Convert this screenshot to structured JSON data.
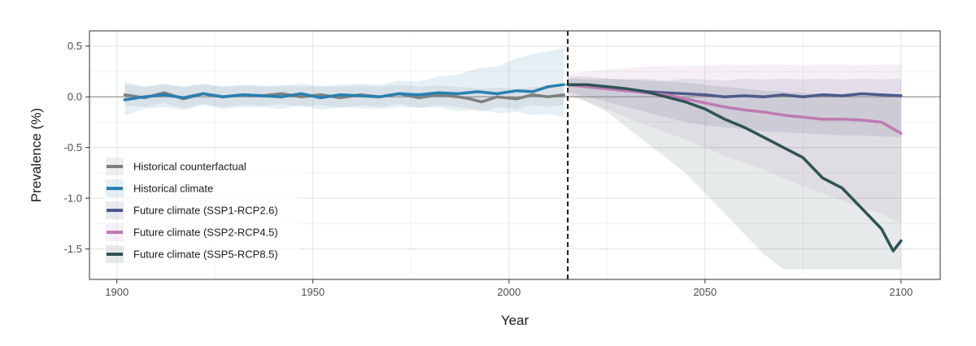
{
  "chart_data": {
    "type": "line",
    "title": "",
    "xlabel": "Year",
    "ylabel": "Prevalence (%)",
    "xlim": [
      1893,
      2110
    ],
    "ylim": [
      -1.8,
      0.65
    ],
    "xticks": [
      1900,
      1950,
      2000,
      2050,
      2100
    ],
    "yticks": [
      0.5,
      0.0,
      -0.5,
      -1.0,
      -1.5
    ],
    "xtick_labels": [
      "1900",
      "1950",
      "2000",
      "2050",
      "2100"
    ],
    "ytick_labels": [
      "0.5",
      "0.0",
      "-0.5",
      "-1.0",
      "-1.5"
    ],
    "reference_hline": 0.0,
    "divider_vline": 2015,
    "grid": true,
    "legend_position": "bottom-left",
    "series": [
      {
        "name": "Historical counterfactual",
        "color": "#7f7f7f",
        "x": [
          1902,
          1907,
          1912,
          1917,
          1922,
          1927,
          1932,
          1937,
          1942,
          1947,
          1952,
          1957,
          1962,
          1967,
          1972,
          1977,
          1982,
          1987,
          1990,
          1993,
          1997,
          2002,
          2006,
          2010,
          2014
        ],
        "y": [
          0.02,
          -0.01,
          0.04,
          -0.02,
          0.03,
          0.0,
          0.02,
          0.01,
          0.03,
          0.0,
          0.02,
          -0.01,
          0.02,
          0.0,
          0.03,
          -0.01,
          0.02,
          0.0,
          -0.02,
          -0.05,
          0.0,
          -0.02,
          0.02,
          0.0,
          0.02
        ],
        "band_upper": [
          0.12,
          0.1,
          0.13,
          0.1,
          0.12,
          0.1,
          0.11,
          0.1,
          0.12,
          0.1,
          0.11,
          0.1,
          0.11,
          0.1,
          0.12,
          0.1,
          0.11,
          0.1,
          0.09,
          0.08,
          0.09,
          0.08,
          0.1,
          0.09,
          0.1
        ],
        "band_lower": [
          -0.08,
          -0.1,
          -0.06,
          -0.12,
          -0.07,
          -0.1,
          -0.08,
          -0.09,
          -0.07,
          -0.1,
          -0.08,
          -0.11,
          -0.08,
          -0.1,
          -0.07,
          -0.11,
          -0.08,
          -0.1,
          -0.12,
          -0.15,
          -0.1,
          -0.12,
          -0.08,
          -0.1,
          -0.08
        ]
      },
      {
        "name": "Historical climate",
        "color": "#2a7fb0",
        "x": [
          1902,
          1907,
          1912,
          1917,
          1922,
          1927,
          1932,
          1937,
          1942,
          1947,
          1952,
          1957,
          1962,
          1967,
          1972,
          1977,
          1982,
          1987,
          1992,
          1997,
          2002,
          2006,
          2010,
          2014
        ],
        "y": [
          -0.03,
          0.0,
          0.02,
          -0.01,
          0.03,
          0.0,
          0.02,
          0.01,
          0.0,
          0.03,
          -0.01,
          0.02,
          0.01,
          0.0,
          0.03,
          0.02,
          0.04,
          0.03,
          0.05,
          0.03,
          0.06,
          0.05,
          0.1,
          0.12
        ],
        "band_upper": [
          0.15,
          0.1,
          0.12,
          0.1,
          0.13,
          0.1,
          0.12,
          0.11,
          0.1,
          0.13,
          0.1,
          0.12,
          0.13,
          0.12,
          0.16,
          0.15,
          0.2,
          0.22,
          0.28,
          0.3,
          0.38,
          0.42,
          0.45,
          0.48
        ],
        "band_lower": [
          -0.18,
          -0.12,
          -0.1,
          -0.13,
          -0.08,
          -0.12,
          -0.1,
          -0.1,
          -0.12,
          -0.08,
          -0.13,
          -0.1,
          -0.11,
          -0.12,
          -0.1,
          -0.11,
          -0.1,
          -0.14,
          -0.12,
          -0.16,
          -0.15,
          -0.18,
          -0.17,
          -0.2
        ]
      },
      {
        "name": "Future climate (SSP1-RCP2.6)",
        "color": "#4d5a8c",
        "x": [
          2015,
          2020,
          2025,
          2030,
          2035,
          2040,
          2045,
          2050,
          2055,
          2060,
          2065,
          2070,
          2075,
          2080,
          2085,
          2090,
          2095,
          2100
        ],
        "y": [
          0.12,
          0.1,
          0.08,
          0.06,
          0.05,
          0.04,
          0.03,
          0.02,
          0.0,
          0.01,
          0.0,
          0.02,
          0.0,
          0.02,
          0.01,
          0.03,
          0.02,
          0.01
        ],
        "band_upper": [
          0.18,
          0.17,
          0.18,
          0.17,
          0.18,
          0.16,
          0.18,
          0.17,
          0.16,
          0.18,
          0.17,
          0.18,
          0.17,
          0.18,
          0.17,
          0.18,
          0.17,
          0.18
        ],
        "band_lower": [
          0.05,
          0.0,
          -0.05,
          -0.1,
          -0.15,
          -0.2,
          -0.25,
          -0.28,
          -0.3,
          -0.32,
          -0.34,
          -0.35,
          -0.36,
          -0.37,
          -0.38,
          -0.38,
          -0.39,
          -0.4
        ]
      },
      {
        "name": "Future climate (SSP2-RCP4.5)",
        "color": "#c07ab2",
        "x": [
          2015,
          2020,
          2025,
          2030,
          2035,
          2040,
          2045,
          2050,
          2055,
          2060,
          2065,
          2070,
          2075,
          2080,
          2085,
          2090,
          2095,
          2100
        ],
        "y": [
          0.12,
          0.1,
          0.08,
          0.06,
          0.04,
          0.02,
          -0.02,
          -0.06,
          -0.1,
          -0.13,
          -0.15,
          -0.18,
          -0.2,
          -0.22,
          -0.22,
          -0.23,
          -0.25,
          -0.36
        ],
        "band_upper": [
          0.22,
          0.25,
          0.27,
          0.28,
          0.3,
          0.3,
          0.31,
          0.31,
          0.32,
          0.31,
          0.32,
          0.32,
          0.31,
          0.32,
          0.32,
          0.31,
          0.32,
          0.32
        ],
        "band_lower": [
          0.02,
          -0.05,
          -0.12,
          -0.2,
          -0.28,
          -0.35,
          -0.42,
          -0.5,
          -0.58,
          -0.65,
          -0.72,
          -0.8,
          -0.88,
          -0.95,
          -1.02,
          -1.1,
          -1.15,
          -1.25
        ]
      },
      {
        "name": "Future climate (SSP5-RCP8.5)",
        "color": "#2f5356",
        "x": [
          2015,
          2020,
          2025,
          2030,
          2035,
          2040,
          2045,
          2050,
          2055,
          2060,
          2065,
          2070,
          2075,
          2080,
          2085,
          2090,
          2095,
          2098,
          2100
        ],
        "y": [
          0.12,
          0.12,
          0.1,
          0.08,
          0.05,
          0.0,
          -0.05,
          -0.12,
          -0.22,
          -0.3,
          -0.4,
          -0.5,
          -0.6,
          -0.8,
          -0.9,
          -1.1,
          -1.3,
          -1.52,
          -1.42
        ],
        "band_upper": [
          0.2,
          0.2,
          0.18,
          0.17,
          0.16,
          0.15,
          0.14,
          0.12,
          0.1,
          0.08,
          0.06,
          0.05,
          0.04,
          0.03,
          0.02,
          0.02,
          0.01,
          0.0,
          0.0
        ],
        "band_lower": [
          0.02,
          -0.05,
          -0.15,
          -0.3,
          -0.45,
          -0.6,
          -0.75,
          -0.95,
          -1.15,
          -1.35,
          -1.55,
          -1.7,
          -1.7,
          -1.7,
          -1.7,
          -1.7,
          -1.7,
          -1.7,
          -1.7
        ]
      }
    ]
  }
}
